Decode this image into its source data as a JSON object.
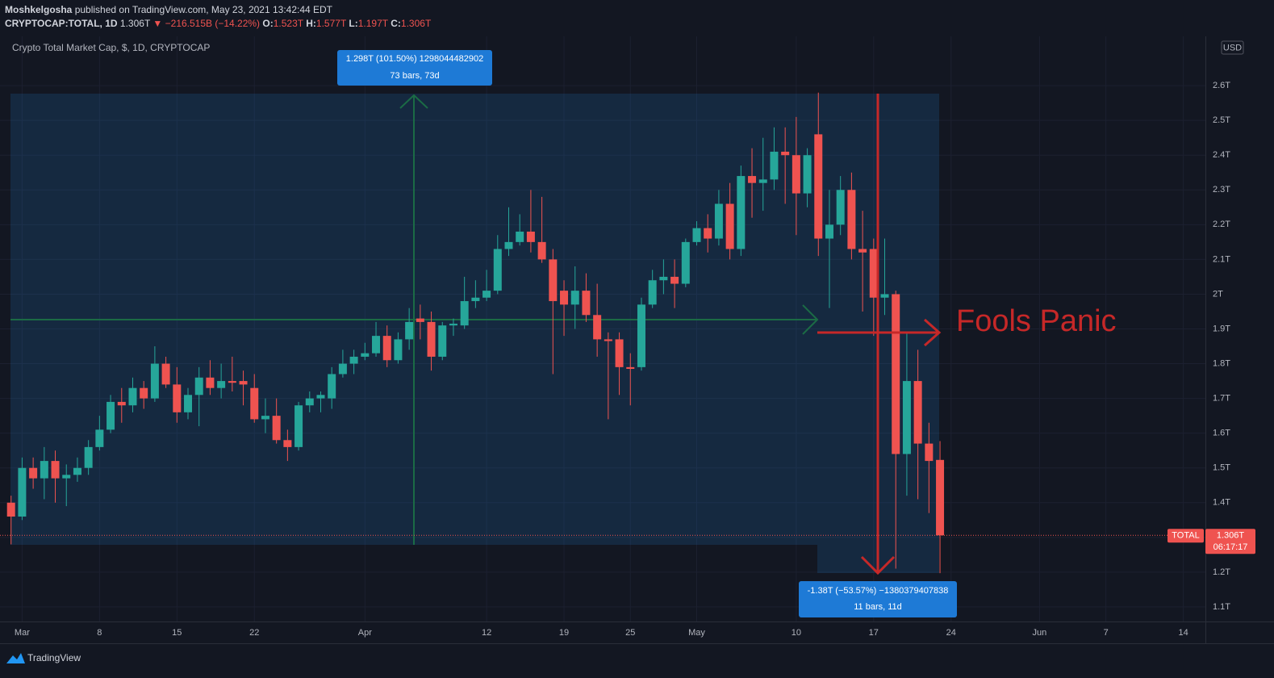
{
  "header": {
    "author": "Moshkelgosha",
    "published": "published on TradingView.com, May 23, 2021 13:42:44 EDT",
    "symbol": "CRYPTOCAP:TOTAL, 1D",
    "last": "1.306T",
    "change": "▼ −216.515B (−14.22%)",
    "ohlc": [
      {
        "label": "O:",
        "value": "1.523T"
      },
      {
        "label": "H:",
        "value": "1.577T"
      },
      {
        "label": "L:",
        "value": "1.197T"
      },
      {
        "label": "C:",
        "value": "1.306T"
      }
    ]
  },
  "footer": {
    "brand": "TradingView"
  },
  "chart_data": {
    "type": "candlestick",
    "title": "Crypto Total Market Cap, $, 1D, CRYPTOCAP",
    "currency": "USD",
    "up_color": "#26a69a",
    "down_color": "#ef5350",
    "grid": true,
    "x": [
      "2021-02-28",
      "2021-03-01",
      "2021-03-02",
      "2021-03-03",
      "2021-03-04",
      "2021-03-05",
      "2021-03-06",
      "2021-03-07",
      "2021-03-08",
      "2021-03-09",
      "2021-03-10",
      "2021-03-11",
      "2021-03-12",
      "2021-03-13",
      "2021-03-14",
      "2021-03-15",
      "2021-03-16",
      "2021-03-17",
      "2021-03-18",
      "2021-03-19",
      "2021-03-20",
      "2021-03-21",
      "2021-03-22",
      "2021-03-23",
      "2021-03-24",
      "2021-03-25",
      "2021-03-26",
      "2021-03-27",
      "2021-03-28",
      "2021-03-29",
      "2021-03-30",
      "2021-03-31",
      "2021-04-01",
      "2021-04-02",
      "2021-04-03",
      "2021-04-04",
      "2021-04-05",
      "2021-04-06",
      "2021-04-07",
      "2021-04-08",
      "2021-04-09",
      "2021-04-10",
      "2021-04-11",
      "2021-04-12",
      "2021-04-13",
      "2021-04-14",
      "2021-04-15",
      "2021-04-16",
      "2021-04-17",
      "2021-04-18",
      "2021-04-19",
      "2021-04-20",
      "2021-04-21",
      "2021-04-22",
      "2021-04-23",
      "2021-04-24",
      "2021-04-25",
      "2021-04-26",
      "2021-04-27",
      "2021-04-28",
      "2021-04-29",
      "2021-04-30",
      "2021-05-01",
      "2021-05-02",
      "2021-05-03",
      "2021-05-04",
      "2021-05-05",
      "2021-05-06",
      "2021-05-07",
      "2021-05-08",
      "2021-05-09",
      "2021-05-10",
      "2021-05-11",
      "2021-05-12",
      "2021-05-13",
      "2021-05-14",
      "2021-05-15",
      "2021-05-16",
      "2021-05-17",
      "2021-05-18",
      "2021-05-19",
      "2021-05-20",
      "2021-05-21",
      "2021-05-22",
      "2021-05-23"
    ],
    "open": [
      1.4,
      1.36,
      1.5,
      1.47,
      1.52,
      1.47,
      1.48,
      1.5,
      1.56,
      1.61,
      1.69,
      1.68,
      1.73,
      1.7,
      1.8,
      1.74,
      1.66,
      1.71,
      1.76,
      1.73,
      1.75,
      1.75,
      1.73,
      1.64,
      1.65,
      1.58,
      1.56,
      1.68,
      1.7,
      1.7,
      1.77,
      1.8,
      1.82,
      1.83,
      1.88,
      1.81,
      1.87,
      1.93,
      1.92,
      1.82,
      1.91,
      1.91,
      1.98,
      1.99,
      2.01,
      2.13,
      2.15,
      2.18,
      2.15,
      2.1,
      2.01,
      1.97,
      2.01,
      1.94,
      1.87,
      1.87,
      1.79,
      1.79,
      1.97,
      2.04,
      2.05,
      2.03,
      2.15,
      2.19,
      2.16,
      2.26,
      2.13,
      2.34,
      2.32,
      2.33,
      2.41,
      2.4,
      2.29,
      2.46,
      2.16,
      2.2,
      2.3,
      2.13,
      2.13,
      1.99,
      2.0,
      1.54,
      1.75,
      1.57,
      1.523
    ],
    "high": [
      1.42,
      1.53,
      1.53,
      1.56,
      1.55,
      1.51,
      1.53,
      1.58,
      1.65,
      1.71,
      1.73,
      1.76,
      1.75,
      1.85,
      1.82,
      1.79,
      1.73,
      1.79,
      1.81,
      1.8,
      1.82,
      1.78,
      1.77,
      1.7,
      1.7,
      1.61,
      1.69,
      1.72,
      1.72,
      1.79,
      1.84,
      1.84,
      1.86,
      1.92,
      1.91,
      1.89,
      1.96,
      1.97,
      1.95,
      1.92,
      1.93,
      2.05,
      2.04,
      2.07,
      2.17,
      2.25,
      2.23,
      2.3,
      2.28,
      2.13,
      2.04,
      2.08,
      2.06,
      2.03,
      1.89,
      1.89,
      1.83,
      1.99,
      2.07,
      2.1,
      2.1,
      2.16,
      2.21,
      2.23,
      2.3,
      2.32,
      2.37,
      2.42,
      2.45,
      2.48,
      2.48,
      2.51,
      2.42,
      2.58,
      2.3,
      2.34,
      2.35,
      2.24,
      2.16,
      2.16,
      2.01,
      1.89,
      1.84,
      1.63,
      1.577
    ],
    "low": [
      1.28,
      1.35,
      1.44,
      1.41,
      1.4,
      1.39,
      1.46,
      1.48,
      1.55,
      1.6,
      1.63,
      1.66,
      1.67,
      1.69,
      1.73,
      1.63,
      1.64,
      1.62,
      1.71,
      1.7,
      1.72,
      1.68,
      1.63,
      1.6,
      1.57,
      1.52,
      1.55,
      1.66,
      1.66,
      1.67,
      1.76,
      1.77,
      1.81,
      1.82,
      1.79,
      1.8,
      1.84,
      1.87,
      1.78,
      1.81,
      1.88,
      1.9,
      1.96,
      1.98,
      2.0,
      2.11,
      2.14,
      2.12,
      2.09,
      1.77,
      1.88,
      1.9,
      1.92,
      1.82,
      1.64,
      1.71,
      1.68,
      1.78,
      1.96,
      2.0,
      1.96,
      2.02,
      2.14,
      2.12,
      2.14,
      2.1,
      2.11,
      2.22,
      2.24,
      2.3,
      2.26,
      2.17,
      2.25,
      2.11,
      1.96,
      2.17,
      2.1,
      1.95,
      1.88,
      1.94,
      1.21,
      1.42,
      1.41,
      1.37,
      1.197
    ],
    "close": [
      1.36,
      1.5,
      1.47,
      1.52,
      1.47,
      1.48,
      1.5,
      1.56,
      1.61,
      1.69,
      1.68,
      1.73,
      1.7,
      1.8,
      1.74,
      1.66,
      1.71,
      1.76,
      1.73,
      1.75,
      1.745,
      1.74,
      1.64,
      1.65,
      1.58,
      1.56,
      1.68,
      1.7,
      1.71,
      1.77,
      1.8,
      1.82,
      1.83,
      1.88,
      1.81,
      1.87,
      1.92,
      1.92,
      1.82,
      1.91,
      1.915,
      1.98,
      1.99,
      2.01,
      2.13,
      2.15,
      2.18,
      2.15,
      2.1,
      1.98,
      1.97,
      2.01,
      1.94,
      1.87,
      1.865,
      1.79,
      1.785,
      1.97,
      2.04,
      2.05,
      2.03,
      2.15,
      2.19,
      2.16,
      2.26,
      2.13,
      2.34,
      2.32,
      2.33,
      2.41,
      2.4,
      2.29,
      2.4,
      2.16,
      2.2,
      2.3,
      2.13,
      2.12,
      1.99,
      2.0,
      1.54,
      1.75,
      1.57,
      1.52,
      1.306
    ],
    "xlim": [
      "2021-02-27",
      "2021-06-16"
    ],
    "xticks": [
      {
        "value": "2021-03-01",
        "label": "Mar"
      },
      {
        "value": "2021-03-08",
        "label": "8"
      },
      {
        "value": "2021-03-15",
        "label": "15"
      },
      {
        "value": "2021-03-22",
        "label": "22"
      },
      {
        "value": "2021-04-01",
        "label": "Apr"
      },
      {
        "value": "2021-04-12",
        "label": "12"
      },
      {
        "value": "2021-04-19",
        "label": "19"
      },
      {
        "value": "2021-04-25",
        "label": "25"
      },
      {
        "value": "2021-05-01",
        "label": "May"
      },
      {
        "value": "2021-05-10",
        "label": "10"
      },
      {
        "value": "2021-05-17",
        "label": "17"
      },
      {
        "value": "2021-05-24",
        "label": "24"
      },
      {
        "value": "2021-06-01",
        "label": "Jun"
      },
      {
        "value": "2021-06-07",
        "label": "7"
      },
      {
        "value": "2021-06-14",
        "label": "14"
      }
    ],
    "ylim": [
      1.058,
      2.742
    ],
    "yticks": [
      {
        "value": 1.1,
        "label": "1.1T"
      },
      {
        "value": 1.2,
        "label": "1.2T"
      },
      {
        "value": 1.3,
        "label": "1.3T"
      },
      {
        "value": 1.4,
        "label": "1.4T"
      },
      {
        "value": 1.5,
        "label": "1.5T"
      },
      {
        "value": 1.6,
        "label": "1.6T"
      },
      {
        "value": 1.7,
        "label": "1.7T"
      },
      {
        "value": 1.8,
        "label": "1.8T"
      },
      {
        "value": 1.9,
        "label": "1.9T"
      },
      {
        "value": 2,
        "label": "2T"
      },
      {
        "value": 2.1,
        "label": "2.1T"
      },
      {
        "value": 2.2,
        "label": "2.2T"
      },
      {
        "value": 2.3,
        "label": "2.3T"
      },
      {
        "value": 2.4,
        "label": "2.4T"
      },
      {
        "value": 2.5,
        "label": "2.5T"
      },
      {
        "value": 2.6,
        "label": "2.6T"
      }
    ],
    "measures": [
      {
        "text": "1.298T (101.50%) 1298044482902",
        "bars": "73 bars, 73d"
      },
      {
        "text": "-1.38T (−53.57%) −1380379407838",
        "bars": "11 bars, 11d"
      }
    ],
    "note": "Fools Panic",
    "price_label": {
      "name": "TOTAL",
      "value": "1.306T",
      "countdown": "06:17:17"
    }
  }
}
